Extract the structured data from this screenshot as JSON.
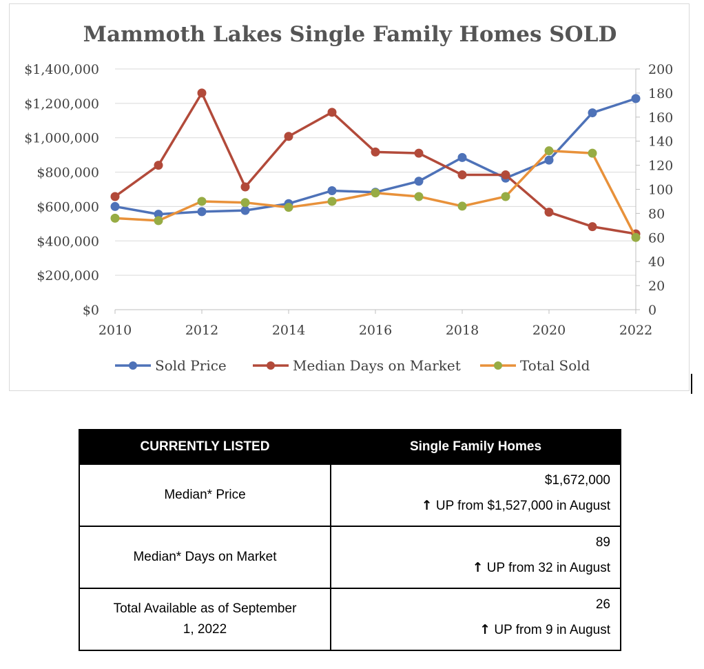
{
  "chart_data": {
    "type": "line",
    "title": "Mammoth Lakes Single Family Homes SOLD",
    "x": [
      2010,
      2011,
      2012,
      2013,
      2014,
      2015,
      2016,
      2017,
      2018,
      2019,
      2020,
      2021,
      2022
    ],
    "x_tick_labels": [
      "2010",
      "2012",
      "2014",
      "2016",
      "2018",
      "2020",
      "2022"
    ],
    "xlim": [
      2010,
      2022
    ],
    "y_left": {
      "lim": [
        0,
        1400000
      ],
      "tick_labels": [
        "$0",
        "$200,000",
        "$400,000",
        "$600,000",
        "$800,000",
        "$1,000,000",
        "$1,200,000",
        "$1,400,000"
      ]
    },
    "y_right": {
      "lim": [
        0,
        200
      ],
      "tick_labels": [
        "0",
        "20",
        "40",
        "60",
        "80",
        "100",
        "120",
        "140",
        "160",
        "180",
        "200"
      ]
    },
    "grid": true,
    "legend_position": "bottom",
    "series": [
      {
        "name": "Sold Price",
        "axis": "left",
        "color": "#4e72b8",
        "marker_color": "#4e72b8",
        "values": [
          600000,
          555000,
          570000,
          577000,
          617000,
          692000,
          683000,
          747000,
          885000,
          765000,
          870000,
          1145000,
          1228000
        ]
      },
      {
        "name": "Median Days on Market",
        "axis": "right",
        "color": "#b24a3a",
        "marker_color": "#b24a3a",
        "values": [
          94,
          120,
          180,
          102,
          144,
          164,
          131,
          130,
          112,
          112,
          81,
          69,
          63
        ]
      },
      {
        "name": "Total Sold",
        "axis": "right",
        "color": "#e8913a",
        "marker_color": "#97ac44",
        "values": [
          76,
          74,
          90,
          89,
          85,
          90,
          97,
          94,
          86,
          94,
          132,
          130,
          60
        ]
      }
    ]
  },
  "table": {
    "header_left": "CURRENTLY LISTED",
    "header_right": "Single Family Homes",
    "rows": [
      {
        "label": "Median* Price",
        "value": "$1,672,000",
        "arrow": "↑",
        "change": "UP from $1,527,000 in August"
      },
      {
        "label": "Median* Days on Market",
        "value": "89",
        "arrow": "↑",
        "change": "UP from 32 in August"
      },
      {
        "label": "Total Available as of September 1, 2022",
        "value": "26",
        "arrow": "↑",
        "change": "UP from 9 in August"
      }
    ]
  }
}
